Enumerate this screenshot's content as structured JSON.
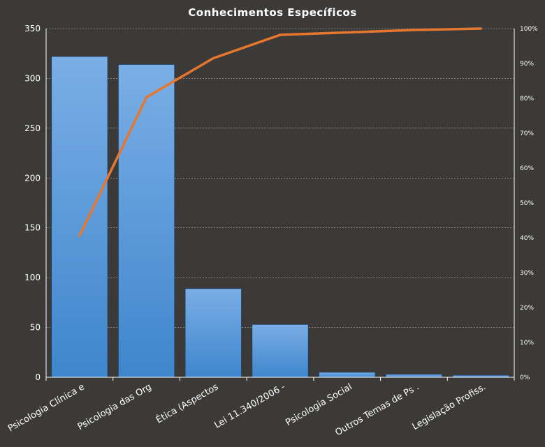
{
  "chart_data": {
    "type": "bar",
    "title": "Conhecimentos Específicos",
    "categories": [
      "Psicologia Clínica e",
      "Psicologia das Org",
      "Ética (Aspectos",
      "Lei 11.340/2006 -",
      "Psicologia Social",
      "Outros  Temas de Ps .",
      "Legislação Profiss."
    ],
    "series": [
      {
        "type": "bar",
        "values": [
          322,
          314,
          89,
          53,
          5,
          3,
          2
        ]
      },
      {
        "type": "line",
        "axis": "secondary",
        "values": [
          0.406,
          0.803,
          0.915,
          0.982,
          0.989,
          0.996,
          1.0
        ]
      }
    ],
    "ylim": [
      0,
      350
    ],
    "y_ticks": [
      "0",
      "50",
      "100",
      "150",
      "200",
      "250",
      "300",
      "350"
    ],
    "y2lim": [
      0,
      1
    ],
    "y2_ticks": [
      "0%",
      "10%",
      "20%",
      "30%",
      "40%",
      "50%",
      "60%",
      "70%",
      "80%",
      "90%",
      "100%"
    ],
    "grid": true,
    "legend": "none",
    "colors": {
      "background": "#3b3a38",
      "bar_top": "#7aaee6",
      "bar_bottom": "#3f86cc",
      "line": "#e8772e",
      "text": "#ffffff"
    }
  }
}
